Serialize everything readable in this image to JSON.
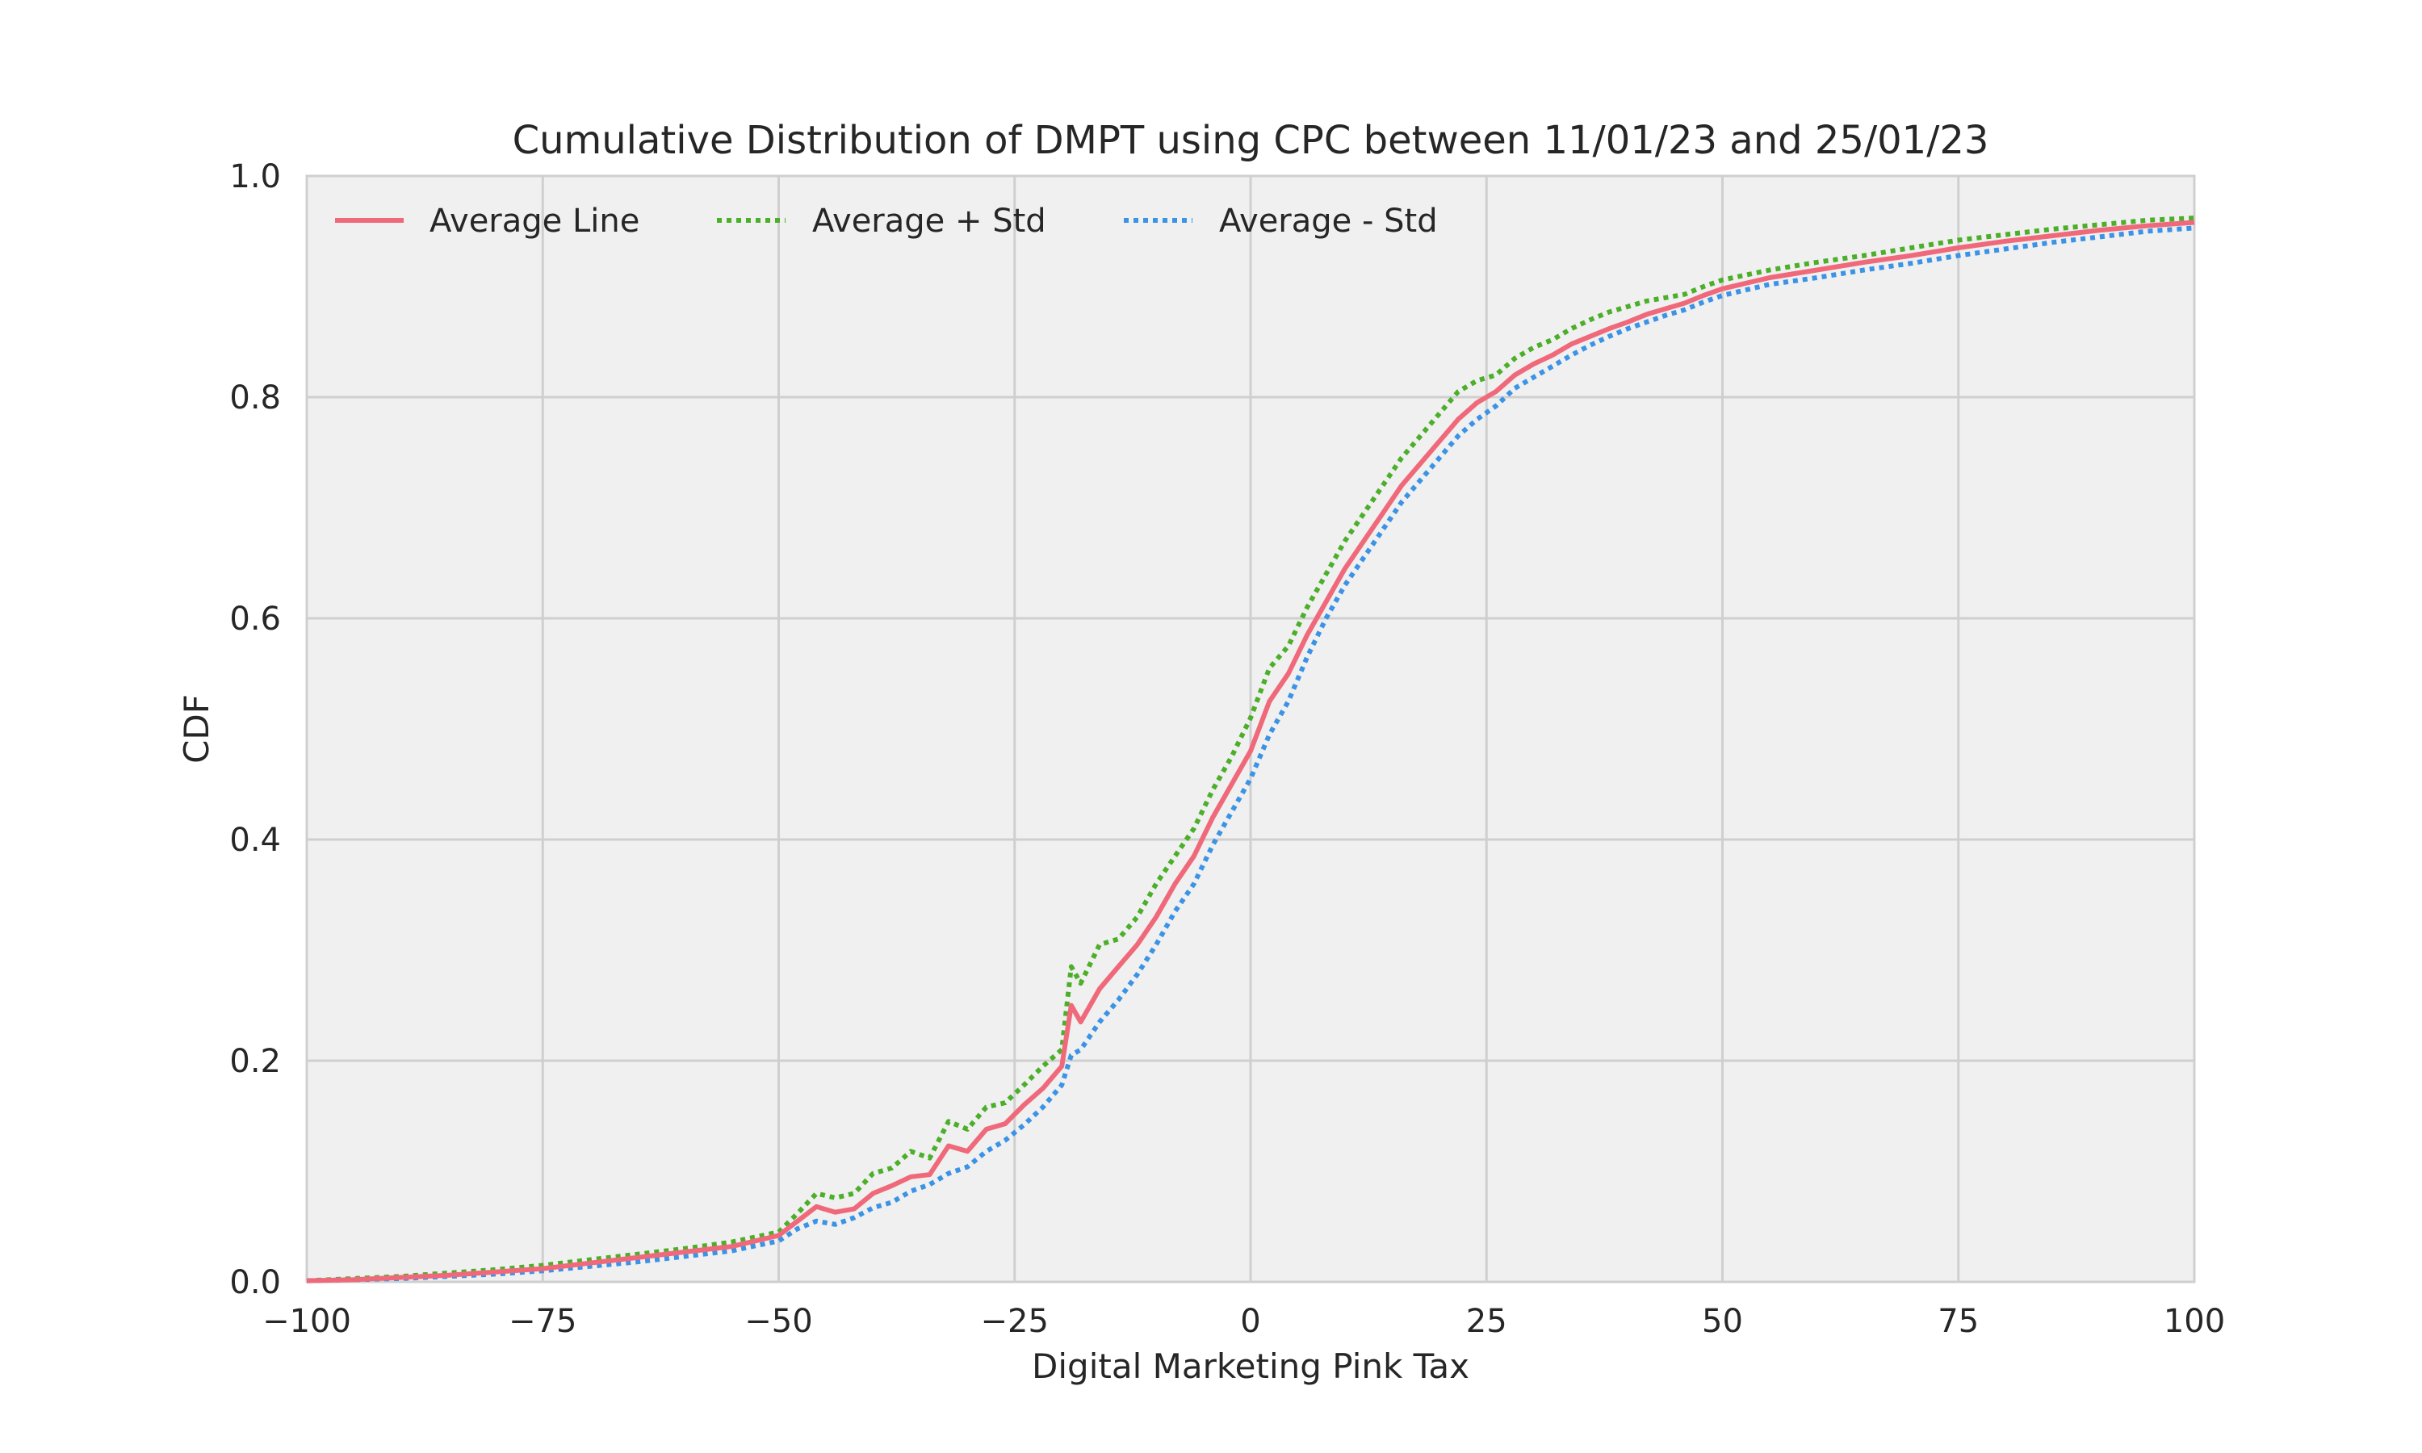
{
  "chart_data": {
    "type": "line",
    "title": "Cumulative Distribution of DMPT using CPC between 11/01/23 and 25/01/23",
    "xlabel": "Digital Marketing Pink Tax",
    "ylabel": "CDF",
    "xlim": [
      -100,
      100
    ],
    "ylim": [
      0,
      1
    ],
    "grid": true,
    "legend_position": "top-left",
    "x_ticks": [
      -100,
      -75,
      -50,
      -25,
      0,
      25,
      50,
      75,
      100
    ],
    "x_tick_labels": [
      "−100",
      "−75",
      "−50",
      "−25",
      "0",
      "25",
      "50",
      "75",
      "100"
    ],
    "y_ticks": [
      0,
      0.2,
      0.4,
      0.6,
      0.8,
      1.0
    ],
    "y_tick_labels": [
      "0.0",
      "0.2",
      "0.4",
      "0.6",
      "0.8",
      "1.0"
    ],
    "x": [
      -100,
      -95,
      -90,
      -85,
      -80,
      -75,
      -70,
      -65,
      -60,
      -55,
      -50,
      -48,
      -46,
      -44,
      -42,
      -40,
      -38,
      -36,
      -34,
      -32,
      -30,
      -28,
      -26,
      -24,
      -22,
      -20,
      -19,
      -18,
      -16,
      -14,
      -12,
      -10,
      -8,
      -6,
      -4,
      -2,
      0,
      2,
      4,
      6,
      8,
      10,
      12,
      14,
      16,
      18,
      20,
      22,
      24,
      26,
      28,
      30,
      32,
      34,
      36,
      38,
      40,
      42,
      44,
      46,
      48,
      50,
      55,
      60,
      65,
      70,
      75,
      80,
      85,
      90,
      95,
      100
    ],
    "series": [
      {
        "name": "Average Line",
        "color": "#f0697a",
        "style": "solid",
        "values": [
          0.001,
          0.002,
          0.004,
          0.006,
          0.009,
          0.012,
          0.017,
          0.022,
          0.027,
          0.032,
          0.042,
          0.055,
          0.068,
          0.063,
          0.066,
          0.08,
          0.087,
          0.095,
          0.097,
          0.123,
          0.118,
          0.138,
          0.143,
          0.16,
          0.175,
          0.195,
          0.25,
          0.235,
          0.265,
          0.285,
          0.305,
          0.33,
          0.36,
          0.385,
          0.42,
          0.45,
          0.48,
          0.525,
          0.55,
          0.585,
          0.615,
          0.645,
          0.67,
          0.695,
          0.72,
          0.74,
          0.76,
          0.78,
          0.795,
          0.805,
          0.82,
          0.83,
          0.838,
          0.848,
          0.855,
          0.862,
          0.868,
          0.875,
          0.88,
          0.885,
          0.892,
          0.898,
          0.908,
          0.915,
          0.922,
          0.928,
          0.935,
          0.941,
          0.946,
          0.951,
          0.955,
          0.958
        ]
      },
      {
        "name": "Average + Std",
        "color": "#4caf2a",
        "style": "dotted",
        "values": [
          0.001,
          0.003,
          0.005,
          0.008,
          0.011,
          0.015,
          0.02,
          0.025,
          0.03,
          0.036,
          0.045,
          0.062,
          0.08,
          0.076,
          0.08,
          0.098,
          0.103,
          0.118,
          0.112,
          0.145,
          0.138,
          0.158,
          0.162,
          0.178,
          0.195,
          0.21,
          0.285,
          0.27,
          0.305,
          0.31,
          0.33,
          0.36,
          0.385,
          0.41,
          0.445,
          0.475,
          0.51,
          0.555,
          0.575,
          0.61,
          0.64,
          0.67,
          0.695,
          0.72,
          0.745,
          0.765,
          0.785,
          0.805,
          0.815,
          0.82,
          0.835,
          0.845,
          0.852,
          0.862,
          0.87,
          0.877,
          0.882,
          0.887,
          0.89,
          0.893,
          0.9,
          0.906,
          0.915,
          0.922,
          0.928,
          0.935,
          0.942,
          0.947,
          0.952,
          0.956,
          0.96,
          0.962
        ]
      },
      {
        "name": "Average - Std",
        "color": "#3b93e6",
        "style": "dotted",
        "values": [
          0.001,
          0.002,
          0.003,
          0.005,
          0.007,
          0.01,
          0.014,
          0.018,
          0.023,
          0.028,
          0.037,
          0.048,
          0.055,
          0.052,
          0.058,
          0.067,
          0.072,
          0.082,
          0.088,
          0.098,
          0.104,
          0.118,
          0.128,
          0.142,
          0.158,
          0.178,
          0.205,
          0.21,
          0.235,
          0.255,
          0.278,
          0.305,
          0.335,
          0.36,
          0.395,
          0.425,
          0.455,
          0.495,
          0.525,
          0.565,
          0.6,
          0.63,
          0.655,
          0.68,
          0.705,
          0.725,
          0.745,
          0.765,
          0.78,
          0.792,
          0.808,
          0.818,
          0.828,
          0.838,
          0.847,
          0.855,
          0.862,
          0.868,
          0.874,
          0.879,
          0.886,
          0.892,
          0.902,
          0.908,
          0.915,
          0.921,
          0.928,
          0.934,
          0.94,
          0.945,
          0.95,
          0.953
        ]
      }
    ]
  }
}
